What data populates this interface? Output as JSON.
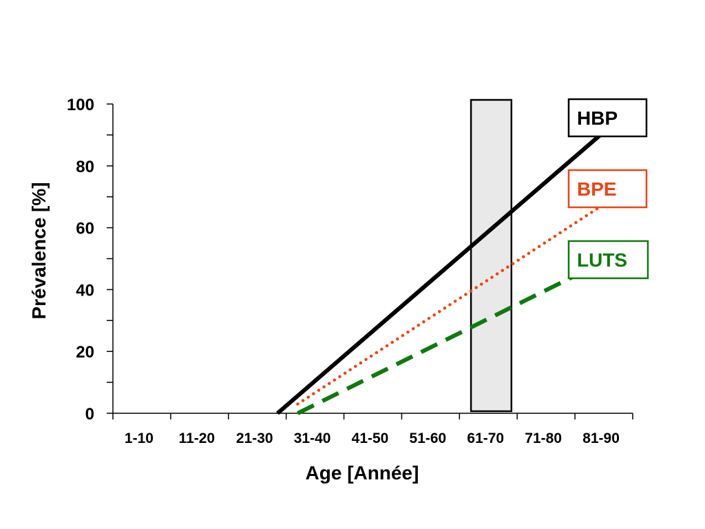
{
  "chart_data": {
    "type": "line",
    "title": "",
    "xlabel": "Age [Année]",
    "ylabel": "Prévalence [%]",
    "categories": [
      "1-10",
      "11-20",
      "21-30",
      "31-40",
      "41-50",
      "51-60",
      "61-70",
      "71-80",
      "81-90"
    ],
    "ylim": [
      0,
      100
    ],
    "yticks": [
      "0",
      "20",
      "40",
      "60",
      "80",
      "100"
    ],
    "grid": false,
    "legend_position": "right",
    "highlight_band": {
      "from": 62,
      "to": 69,
      "color": "#e9e9e9"
    },
    "series": [
      {
        "name": "HBP",
        "color": "#000000",
        "style": "solid",
        "x": [
          28.5,
          87.5
        ],
        "y": [
          0,
          95
        ]
      },
      {
        "name": "BPE",
        "color": "#ee4411",
        "style": "dotted",
        "x": [
          32,
          87
        ],
        "y": [
          3,
          70
        ]
      },
      {
        "name": "LUTS",
        "color": "#0e7a0e",
        "style": "dashed",
        "x": [
          32,
          86
        ],
        "y": [
          0,
          50
        ]
      }
    ]
  }
}
